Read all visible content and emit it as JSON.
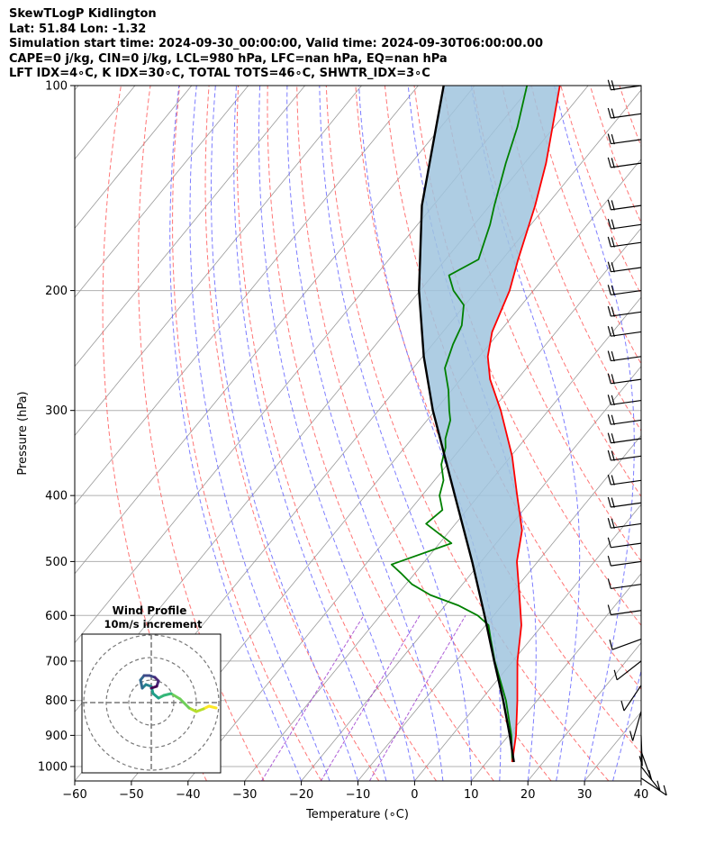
{
  "title_lines": [
    "SkewTLogP Kidlington",
    "Lat: 51.84   Lon: -1.32",
    "Simulation start time: 2024-09-30_00:00:00, Valid time: 2024-09-30T06:00:00.00",
    "CAPE=0 j/kg, CIN=0 j/kg, LCL=980 hPa, LFC=nan hPa, EQ=nan hPa",
    "LFT IDX=4∘C, K IDX=30∘C, TOTAL TOTS=46∘C, SHWTR_IDX=3∘C"
  ],
  "colors": {
    "temperature": "#ff0000",
    "dewpoint": "#008000",
    "parcel": "#000000",
    "shade": "#a0c4de",
    "dry_adiabat": "#ff6666",
    "moist_adiabat": "#6666ff",
    "isotherm": "#999999",
    "mixing_ratio": "#9933cc"
  },
  "chart_data": {
    "type": "line",
    "xlabel": "Temperature (∘C)",
    "ylabel": "Pressure (hPa)",
    "xlim": [
      -60,
      40
    ],
    "ylim": [
      1050,
      100
    ],
    "y_scale": "log",
    "grid": true,
    "x_ticks": [
      -60,
      -50,
      -40,
      -30,
      -20,
      -10,
      0,
      10,
      20,
      30,
      40
    ],
    "y_ticks": [
      100,
      200,
      300,
      400,
      500,
      600,
      700,
      800,
      900,
      1000
    ],
    "series": [
      {
        "key": "temperature",
        "pressure": [
          985,
          900,
          800,
          700,
          620,
          560,
          500,
          450,
          400,
          350,
          300,
          270,
          250,
          230,
          200,
          180,
          150,
          130,
          115,
          100
        ],
        "values": [
          14.5,
          11.3,
          6.5,
          0.8,
          -3.7,
          -8.4,
          -13.7,
          -17.3,
          -23.2,
          -29.8,
          -38.4,
          -44.8,
          -48.5,
          -51.3,
          -54.2,
          -57.2,
          -62.0,
          -66.2,
          -70.3,
          -75.0
        ]
      },
      {
        "key": "dewpoint",
        "pressure": [
          985,
          900,
          800,
          700,
          650,
          620,
          600,
          580,
          560,
          540,
          520,
          505,
          470,
          440,
          420,
          400,
          380,
          360,
          340,
          330,
          310,
          300,
          280,
          260,
          240,
          225,
          210,
          200,
          190,
          180,
          160,
          150,
          130,
          115,
          100
        ],
        "values": [
          14.5,
          10.5,
          4.5,
          -3.2,
          -7.1,
          -9.5,
          -12.8,
          -17.7,
          -24.1,
          -28.9,
          -32.5,
          -35.4,
          -27.9,
          -35.2,
          -34.3,
          -36.9,
          -38.4,
          -41.1,
          -42.8,
          -44.1,
          -45.9,
          -47.5,
          -50.6,
          -54.4,
          -56.4,
          -57.6,
          -60.2,
          -64.1,
          -67.1,
          -64.2,
          -67.2,
          -69.2,
          -73.3,
          -76.5,
          -80.8
        ]
      },
      {
        "key": "parcel",
        "pressure": [
          985,
          900,
          800,
          700,
          600,
          500,
          400,
          300,
          250,
          200,
          150,
          100
        ],
        "values": [
          14.8,
          10.2,
          4.0,
          -3.3,
          -11.6,
          -21.6,
          -34.2,
          -50.4,
          -59.8,
          -70.2,
          -82.0,
          -95.5
        ]
      }
    ],
    "wind_hodograph": {
      "title": "Wind Profile",
      "subtitle": "10m/s increment"
    }
  }
}
